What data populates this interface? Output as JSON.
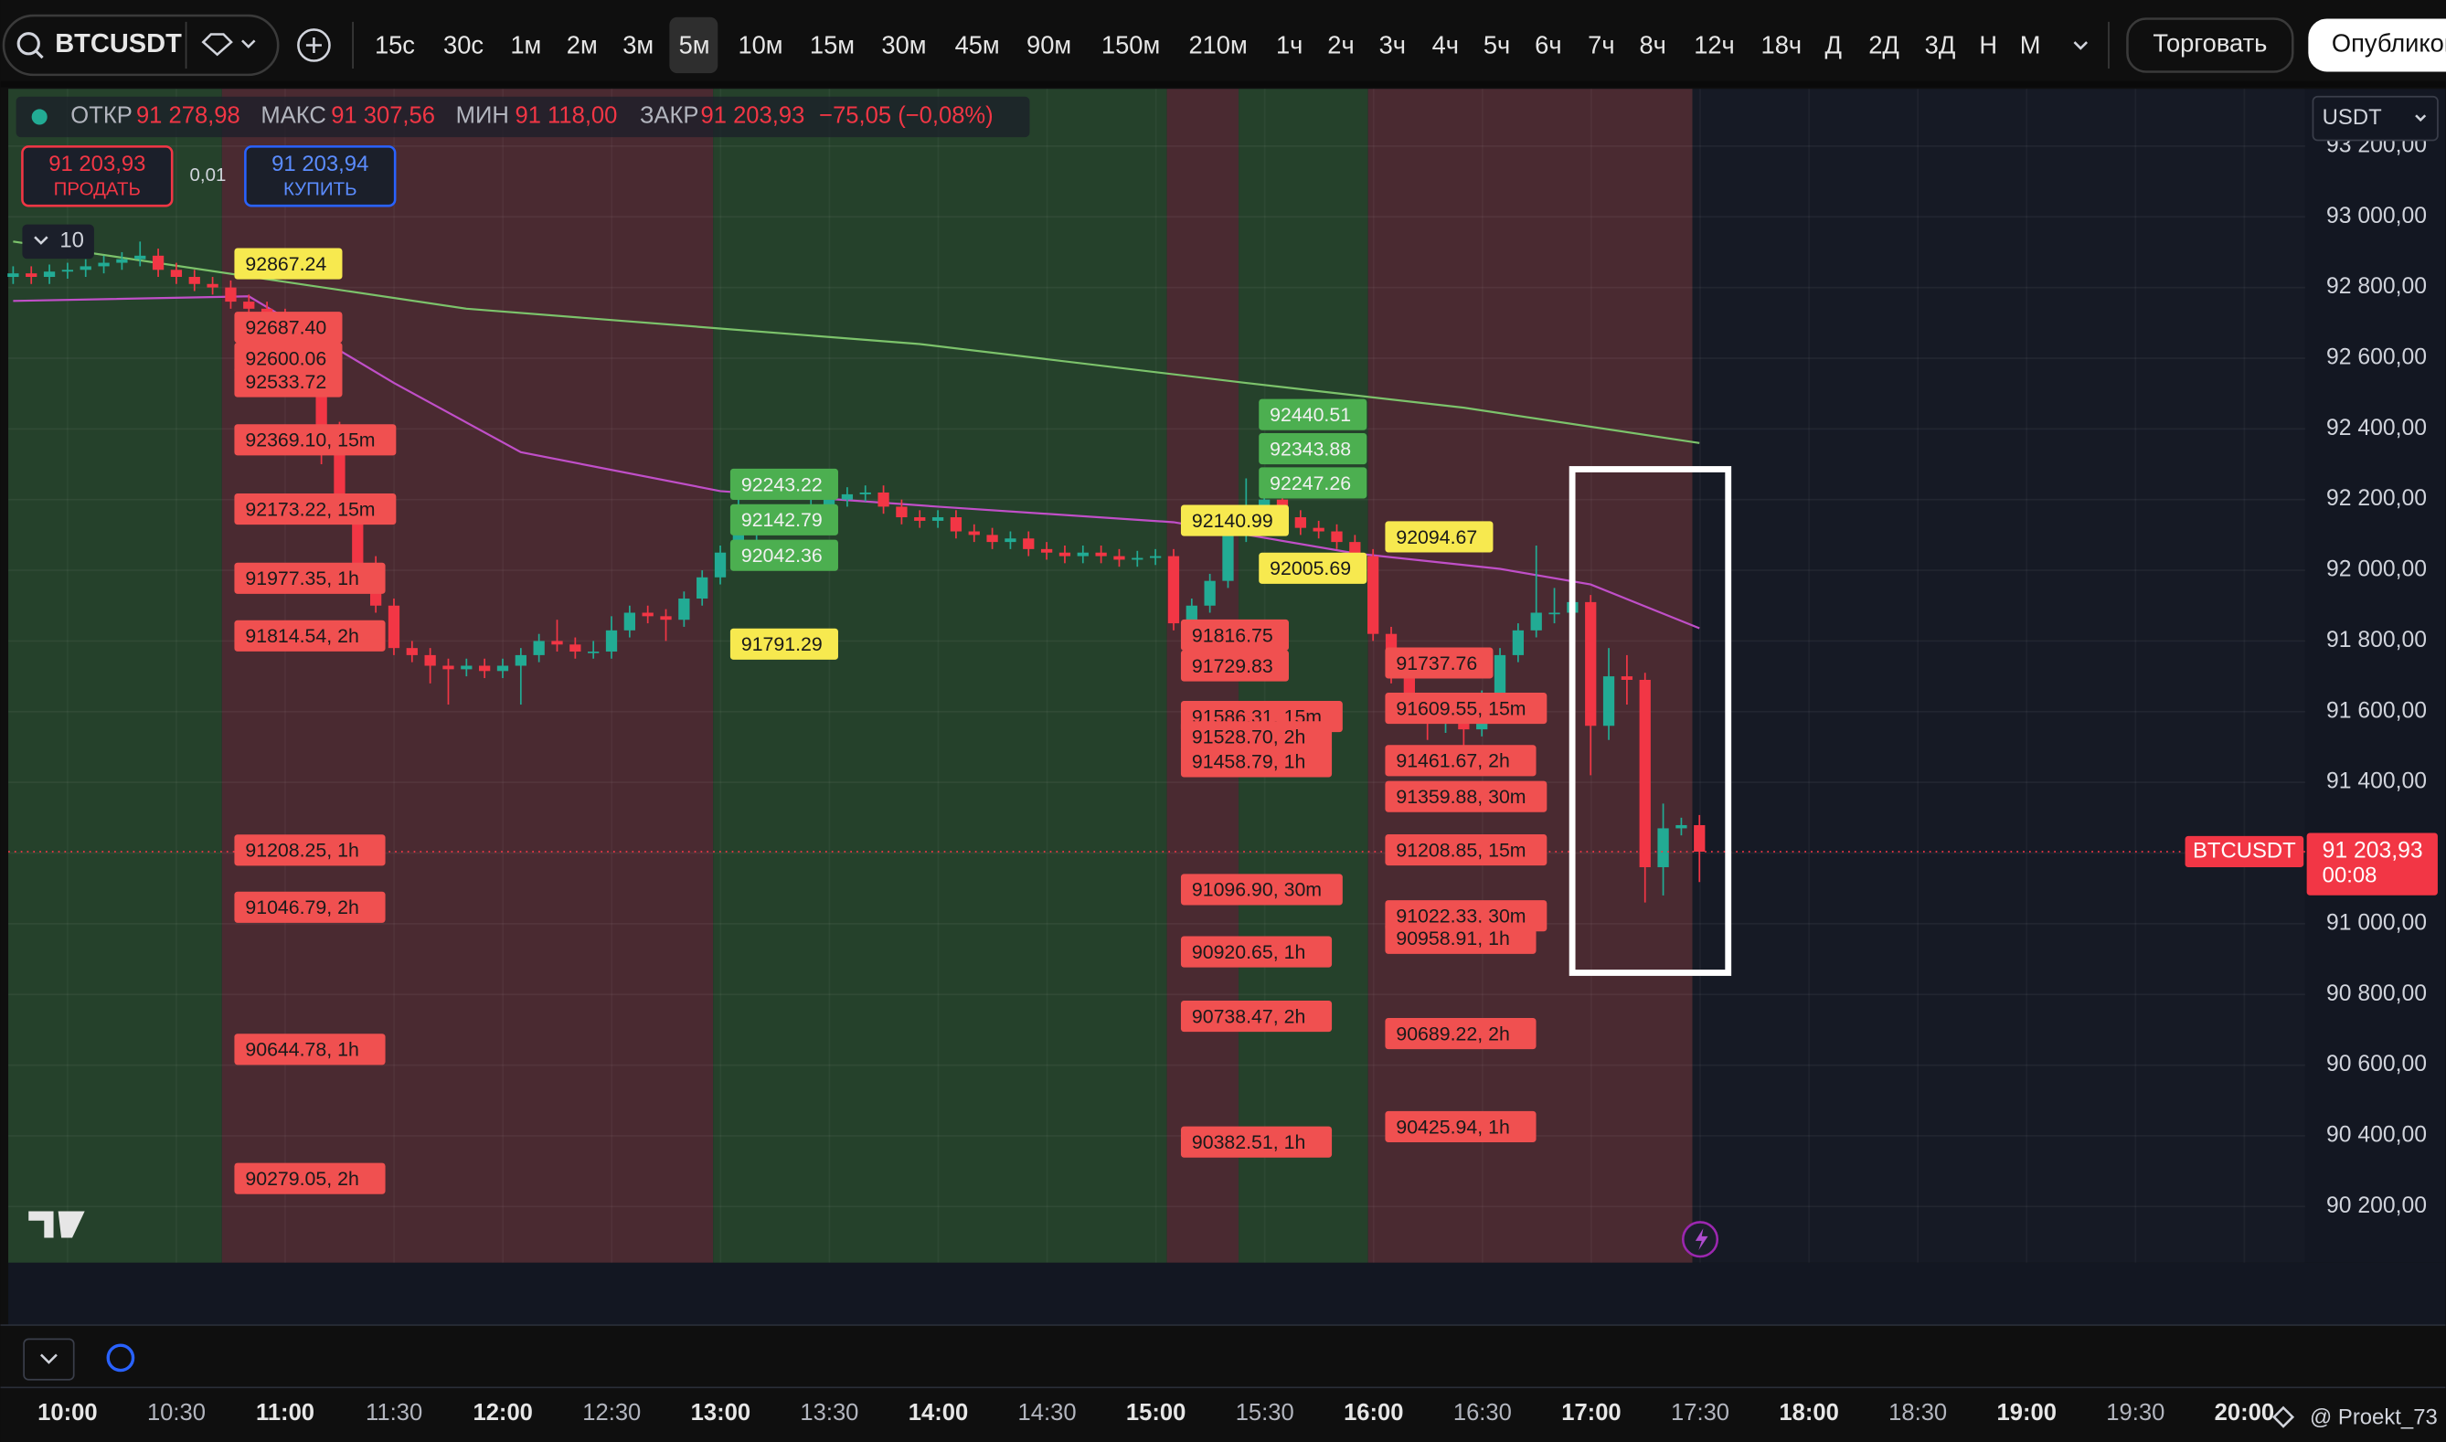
{
  "toolbar": {
    "symbol": "BTCUSDT",
    "intervals": [
      "15с",
      "30с",
      "1м",
      "2м",
      "3м",
      "5м",
      "10м",
      "15м",
      "30м",
      "45м",
      "90м",
      "150м",
      "210м",
      "1ч",
      "2ч",
      "3ч",
      "4ч",
      "5ч",
      "6ч",
      "7ч",
      "8ч",
      "12ч",
      "18ч",
      "Д",
      "2Д",
      "3Д",
      "Н",
      "М"
    ],
    "active_interval": "5м",
    "trade": "Торговать",
    "publish": "Опубликовать"
  },
  "legend": {
    "items": [
      {
        "label": "ОТКР",
        "value": "91 278,98"
      },
      {
        "label": "МАКС",
        "value": "91 307,56"
      },
      {
        "label": "МИН",
        "value": "91 118,00"
      },
      {
        "label": "ЗАКР",
        "value": "91 203,93"
      }
    ],
    "change": "−75,05 (−0,08%)"
  },
  "order_panel": {
    "sell_price": "91 203,93",
    "sell": "ПРОДАТЬ",
    "spread": "0,01",
    "buy_price": "91 203,94",
    "buy": "КУПИТЬ"
  },
  "indicators_count": "10",
  "currency": "USDT",
  "watermark": "@ Proekt_73",
  "chart_data": {
    "type": "candlestick",
    "symbol_label": "BTCUSDT",
    "last_price": {
      "value": 91203.93,
      "label": "91 203,93"
    },
    "countdown": "00:08",
    "up_color": "#22ab94",
    "down_color": "#f23645",
    "grid": true,
    "ylim": [
      90041,
      93362
    ],
    "yticks": [
      {
        "value": 93200,
        "label": "93 200,00"
      },
      {
        "value": 93000,
        "label": "93 000,00"
      },
      {
        "value": 92800,
        "label": "92 800,00"
      },
      {
        "value": 92600,
        "label": "92 600,00"
      },
      {
        "value": 92400,
        "label": "92 400,00"
      },
      {
        "value": 92200,
        "label": "92 200,00"
      },
      {
        "value": 92000,
        "label": "92 000,00"
      },
      {
        "value": 91800,
        "label": "91 800,00"
      },
      {
        "value": 91600,
        "label": "91 600,00"
      },
      {
        "value": 91400,
        "label": "91 400,00"
      },
      {
        "value": 91200,
        "label": "91 200,00"
      },
      {
        "value": 91000,
        "label": "91 000,00"
      },
      {
        "value": 90800,
        "label": "90 800,00"
      },
      {
        "value": 90600,
        "label": "90 600,00"
      },
      {
        "value": 90400,
        "label": "90 400,00"
      },
      {
        "value": 90200,
        "label": "90 200,00"
      }
    ],
    "time_labels": [
      "10:00",
      "10:30",
      "11:00",
      "11:30",
      "12:00",
      "12:30",
      "13:00",
      "13:30",
      "14:00",
      "14:30",
      "15:00",
      "15:30",
      "16:00",
      "16:30",
      "17:00",
      "17:30",
      "18:00",
      "18:30",
      "19:00",
      "19:30",
      "20:00"
    ],
    "candles": [
      [
        92830,
        92860,
        92810,
        92840
      ],
      [
        92840,
        92860,
        92810,
        92830
      ],
      [
        92830,
        92865,
        92810,
        92845
      ],
      [
        92845,
        92870,
        92825,
        92850
      ],
      [
        92850,
        92880,
        92830,
        92860
      ],
      [
        92860,
        92890,
        92840,
        92870
      ],
      [
        92870,
        92900,
        92850,
        92880
      ],
      [
        92880,
        92930,
        92860,
        92890
      ],
      [
        92890,
        92910,
        92830,
        92850
      ],
      [
        92850,
        92870,
        92810,
        92830
      ],
      [
        92830,
        92850,
        92790,
        92810
      ],
      [
        92810,
        92830,
        92780,
        92800
      ],
      [
        92800,
        92820,
        92740,
        92760
      ],
      [
        92760,
        92780,
        92720,
        92740
      ],
      [
        92740,
        92760,
        92700,
        92720
      ],
      [
        92720,
        92740,
        92680,
        92700
      ],
      [
        92700,
        92720,
        92600,
        92620
      ],
      [
        92620,
        92640,
        92300,
        92400
      ],
      [
        92400,
        92420,
        92160,
        92180
      ],
      [
        92180,
        92200,
        92000,
        92020
      ],
      [
        92020,
        92040,
        91880,
        91900
      ],
      [
        91900,
        91920,
        91760,
        91780
      ],
      [
        91780,
        91800,
        91740,
        91760
      ],
      [
        91760,
        91780,
        91680,
        91730
      ],
      [
        91730,
        91750,
        91620,
        91720
      ],
      [
        91720,
        91750,
        91700,
        91730
      ],
      [
        91730,
        91750,
        91695,
        91715
      ],
      [
        91715,
        91750,
        91695,
        91730
      ],
      [
        91730,
        91780,
        91620,
        91760
      ],
      [
        91760,
        91820,
        91740,
        91800
      ],
      [
        91800,
        91860,
        91770,
        91790
      ],
      [
        91790,
        91810,
        91750,
        91770
      ],
      [
        91770,
        91800,
        91750,
        91770
      ],
      [
        91770,
        91870,
        91750,
        91830
      ],
      [
        91830,
        91900,
        91810,
        91880
      ],
      [
        91880,
        91900,
        91850,
        91870
      ],
      [
        91870,
        91890,
        91800,
        91860
      ],
      [
        91860,
        91940,
        91840,
        91920
      ],
      [
        91920,
        92000,
        91900,
        91980
      ],
      [
        91980,
        92070,
        91960,
        92050
      ],
      [
        92050,
        92220,
        92030,
        92100
      ],
      [
        92100,
        92150,
        92080,
        92130
      ],
      [
        92130,
        92170,
        92110,
        92150
      ],
      [
        92150,
        92180,
        92130,
        92160
      ],
      [
        92160,
        92200,
        92140,
        92180
      ],
      [
        92180,
        92220,
        92160,
        92200
      ],
      [
        92200,
        92235,
        92180,
        92215
      ],
      [
        92215,
        92240,
        92195,
        92220
      ],
      [
        92220,
        92240,
        92160,
        92180
      ],
      [
        92180,
        92200,
        92130,
        92150
      ],
      [
        92150,
        92170,
        92120,
        92140
      ],
      [
        92140,
        92170,
        92120,
        92150
      ],
      [
        92150,
        92170,
        92090,
        92110
      ],
      [
        92110,
        92130,
        92080,
        92100
      ],
      [
        92100,
        92120,
        92060,
        92080
      ],
      [
        92080,
        92110,
        92060,
        92090
      ],
      [
        92090,
        92110,
        92040,
        92060
      ],
      [
        92060,
        92080,
        92030,
        92050
      ],
      [
        92050,
        92070,
        92020,
        92040
      ],
      [
        92040,
        92070,
        92020,
        92050
      ],
      [
        92050,
        92070,
        92020,
        92040
      ],
      [
        92040,
        92060,
        92010,
        92030
      ],
      [
        92030,
        92055,
        92010,
        92035
      ],
      [
        92035,
        92060,
        92015,
        92040
      ],
      [
        92040,
        92060,
        91830,
        91850
      ],
      [
        91850,
        91920,
        91830,
        91900
      ],
      [
        91900,
        91990,
        91880,
        91970
      ],
      [
        91970,
        92120,
        91950,
        92100
      ],
      [
        92100,
        92260,
        92080,
        92180
      ],
      [
        92180,
        92240,
        92150,
        92200
      ],
      [
        92200,
        92220,
        92130,
        92150
      ],
      [
        92150,
        92170,
        92100,
        92120
      ],
      [
        92120,
        92140,
        92090,
        92110
      ],
      [
        92110,
        92130,
        92060,
        92080
      ],
      [
        92080,
        92100,
        92020,
        92040
      ],
      [
        92040,
        92060,
        91800,
        91820
      ],
      [
        91820,
        91840,
        91680,
        91700
      ],
      [
        91700,
        91720,
        91580,
        91620
      ],
      [
        91620,
        91640,
        91520,
        91580
      ],
      [
        91580,
        91640,
        91540,
        91600
      ],
      [
        91600,
        91620,
        91500,
        91550
      ],
      [
        91550,
        91660,
        91530,
        91640
      ],
      [
        91640,
        91780,
        91620,
        91760
      ],
      [
        91760,
        91850,
        91740,
        91830
      ],
      [
        91830,
        92070,
        91810,
        91880
      ],
      [
        91880,
        91950,
        91850,
        91880
      ],
      [
        91880,
        91940,
        91860,
        91910
      ],
      [
        91910,
        91930,
        91420,
        91560
      ],
      [
        91560,
        91780,
        91520,
        91700
      ],
      [
        91700,
        91760,
        91620,
        91690
      ],
      [
        91690,
        91710,
        91060,
        91160
      ],
      [
        91160,
        91340,
        91080,
        91270
      ],
      [
        91270,
        91300,
        91250,
        91279
      ],
      [
        91278.98,
        91307.56,
        91118.0,
        91203.93
      ]
    ],
    "indicators": [
      {
        "color": "#7cc36b",
        "points": [
          [
            0,
            92930
          ],
          [
            25,
            92740
          ],
          [
            50,
            92640
          ],
          [
            68,
            92530
          ],
          [
            80,
            92460
          ],
          [
            93,
            92360
          ]
        ]
      },
      {
        "color": "#c04fc8",
        "points": [
          [
            0,
            92762
          ],
          [
            13,
            92775
          ],
          [
            21,
            92530
          ],
          [
            28,
            92334
          ],
          [
            39,
            92224
          ],
          [
            51,
            92180
          ],
          [
            64,
            92136
          ],
          [
            74,
            92048
          ],
          [
            82,
            92004
          ],
          [
            87,
            91960
          ],
          [
            93,
            91836
          ]
        ]
      }
    ],
    "annotation_groups": [
      [
        {
          "value": 92867.24,
          "label": "92867.24",
          "color": "#f7e94f"
        },
        {
          "value": 92687.4,
          "label": "92687.40",
          "color": "#f05050"
        },
        {
          "value": 92600.06,
          "label": "92600.06",
          "color": "#f05050"
        },
        {
          "value": 92533.72,
          "label": "92533.72",
          "color": "#f05050"
        },
        {
          "value": 92369.1,
          "label": "92369.10, 15m",
          "color": "#f05050"
        },
        {
          "value": 92173.22,
          "label": "92173.22, 15m",
          "color": "#f05050"
        },
        {
          "value": 91977.35,
          "label": "91977.35, 1h",
          "color": "#f05050"
        },
        {
          "value": 91814.54,
          "label": "91814.54, 2h",
          "color": "#f05050"
        },
        {
          "value": 91208.25,
          "label": "91208.25, 1h",
          "color": "#f05050"
        },
        {
          "value": 91046.79,
          "label": "91046.79, 2h",
          "color": "#f05050"
        },
        {
          "value": 90644.78,
          "label": "90644.78, 1h",
          "color": "#f05050"
        },
        {
          "value": 90279.05,
          "label": "90279.05, 2h",
          "color": "#f05050"
        }
      ],
      [
        {
          "value": 92243.22,
          "label": "92243.22",
          "color": "#4caf50"
        },
        {
          "value": 92142.79,
          "label": "92142.79",
          "color": "#4caf50"
        },
        {
          "value": 92042.36,
          "label": "92042.36",
          "color": "#4caf50"
        },
        {
          "value": 91791.29,
          "label": "91791.29",
          "color": "#f7e94f"
        }
      ],
      [
        {
          "value": 92140.99,
          "label": "92140.99",
          "color": "#f7e94f"
        },
        {
          "value": 91816.75,
          "label": "91816.75",
          "color": "#f05050"
        },
        {
          "value": 91729.83,
          "label": "91729.83",
          "color": "#f05050"
        },
        {
          "value": 91586.31,
          "label": "91586.31, 15m",
          "color": "#f05050"
        },
        {
          "value": 91528.7,
          "label": "91528.70, 2h",
          "color": "#f05050"
        },
        {
          "value": 91458.79,
          "label": "91458.79, 1h",
          "color": "#f05050"
        },
        {
          "value": 91096.9,
          "label": "91096.90, 30m",
          "color": "#f05050"
        },
        {
          "value": 90920.65,
          "label": "90920.65, 1h",
          "color": "#f05050"
        },
        {
          "value": 90738.47,
          "label": "90738.47, 2h",
          "color": "#f05050"
        },
        {
          "value": 90382.51,
          "label": "90382.51, 1h",
          "color": "#f05050"
        }
      ],
      [
        {
          "value": 92440.51,
          "label": "92440.51",
          "color": "#4caf50"
        },
        {
          "value": 92343.88,
          "label": "92343.88",
          "color": "#4caf50"
        },
        {
          "value": 92247.26,
          "label": "92247.26",
          "color": "#4caf50"
        },
        {
          "value": 92005.69,
          "label": "92005.69",
          "color": "#f7e94f"
        }
      ],
      [
        {
          "value": 92094.67,
          "label": "92094.67",
          "color": "#f7e94f"
        },
        {
          "value": 91737.76,
          "label": "91737.76",
          "color": "#f05050"
        },
        {
          "value": 91609.55,
          "label": "91609.55, 15m",
          "color": "#f05050"
        },
        {
          "value": 91461.67,
          "label": "91461.67, 2h",
          "color": "#f05050"
        },
        {
          "value": 91359.88,
          "label": "91359.88, 30m",
          "color": "#f05050"
        },
        {
          "value": 91208.85,
          "label": "91208.85, 15m",
          "color": "#f05050"
        },
        {
          "value": 91022.33,
          "label": "91022.33, 30m",
          "color": "#f05050"
        },
        {
          "value": 90958.91,
          "label": "90958.91, 1h",
          "color": "#f05050"
        },
        {
          "value": 90689.22,
          "label": "90689.22, 2h",
          "color": "#f05050"
        },
        {
          "value": 90425.94,
          "label": "90425.94, 1h",
          "color": "#f05050"
        }
      ]
    ]
  }
}
